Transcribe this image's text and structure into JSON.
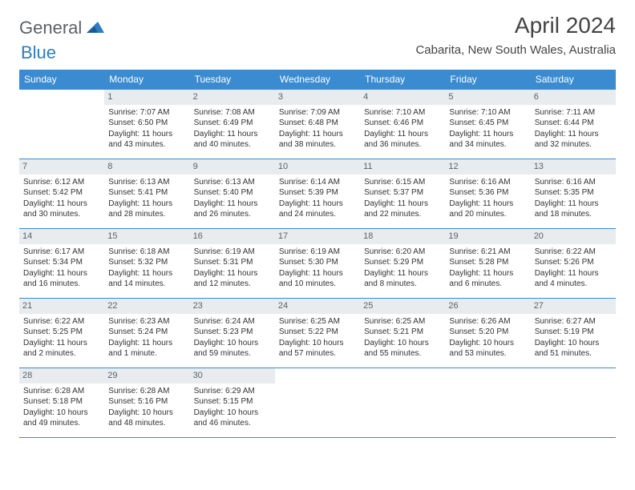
{
  "logo": {
    "part1": "General",
    "part2": "Blue"
  },
  "title": "April 2024",
  "location": "Cabarita, New South Wales, Australia",
  "colors": {
    "header_bg": "#3a8bd0",
    "header_text": "#ffffff",
    "daynum_bg": "#e8ecef",
    "daynum_text": "#5a6268",
    "border": "#3a8bd0",
    "logo_gray": "#5a6268",
    "logo_blue": "#2e7cc2",
    "body_text": "#333333",
    "page_bg": "#ffffff"
  },
  "typography": {
    "title_fontsize": 28,
    "location_fontsize": 15,
    "dow_fontsize": 12,
    "daynum_fontsize": 11,
    "body_fontsize": 10
  },
  "daysOfWeek": [
    "Sunday",
    "Monday",
    "Tuesday",
    "Wednesday",
    "Thursday",
    "Friday",
    "Saturday"
  ],
  "weeks": [
    [
      {
        "n": "",
        "sr": "",
        "ss": "",
        "dl": ""
      },
      {
        "n": "1",
        "sr": "Sunrise: 7:07 AM",
        "ss": "Sunset: 6:50 PM",
        "dl": "Daylight: 11 hours and 43 minutes."
      },
      {
        "n": "2",
        "sr": "Sunrise: 7:08 AM",
        "ss": "Sunset: 6:49 PM",
        "dl": "Daylight: 11 hours and 40 minutes."
      },
      {
        "n": "3",
        "sr": "Sunrise: 7:09 AM",
        "ss": "Sunset: 6:48 PM",
        "dl": "Daylight: 11 hours and 38 minutes."
      },
      {
        "n": "4",
        "sr": "Sunrise: 7:10 AM",
        "ss": "Sunset: 6:46 PM",
        "dl": "Daylight: 11 hours and 36 minutes."
      },
      {
        "n": "5",
        "sr": "Sunrise: 7:10 AM",
        "ss": "Sunset: 6:45 PM",
        "dl": "Daylight: 11 hours and 34 minutes."
      },
      {
        "n": "6",
        "sr": "Sunrise: 7:11 AM",
        "ss": "Sunset: 6:44 PM",
        "dl": "Daylight: 11 hours and 32 minutes."
      }
    ],
    [
      {
        "n": "7",
        "sr": "Sunrise: 6:12 AM",
        "ss": "Sunset: 5:42 PM",
        "dl": "Daylight: 11 hours and 30 minutes."
      },
      {
        "n": "8",
        "sr": "Sunrise: 6:13 AM",
        "ss": "Sunset: 5:41 PM",
        "dl": "Daylight: 11 hours and 28 minutes."
      },
      {
        "n": "9",
        "sr": "Sunrise: 6:13 AM",
        "ss": "Sunset: 5:40 PM",
        "dl": "Daylight: 11 hours and 26 minutes."
      },
      {
        "n": "10",
        "sr": "Sunrise: 6:14 AM",
        "ss": "Sunset: 5:39 PM",
        "dl": "Daylight: 11 hours and 24 minutes."
      },
      {
        "n": "11",
        "sr": "Sunrise: 6:15 AM",
        "ss": "Sunset: 5:37 PM",
        "dl": "Daylight: 11 hours and 22 minutes."
      },
      {
        "n": "12",
        "sr": "Sunrise: 6:16 AM",
        "ss": "Sunset: 5:36 PM",
        "dl": "Daylight: 11 hours and 20 minutes."
      },
      {
        "n": "13",
        "sr": "Sunrise: 6:16 AM",
        "ss": "Sunset: 5:35 PM",
        "dl": "Daylight: 11 hours and 18 minutes."
      }
    ],
    [
      {
        "n": "14",
        "sr": "Sunrise: 6:17 AM",
        "ss": "Sunset: 5:34 PM",
        "dl": "Daylight: 11 hours and 16 minutes."
      },
      {
        "n": "15",
        "sr": "Sunrise: 6:18 AM",
        "ss": "Sunset: 5:32 PM",
        "dl": "Daylight: 11 hours and 14 minutes."
      },
      {
        "n": "16",
        "sr": "Sunrise: 6:19 AM",
        "ss": "Sunset: 5:31 PM",
        "dl": "Daylight: 11 hours and 12 minutes."
      },
      {
        "n": "17",
        "sr": "Sunrise: 6:19 AM",
        "ss": "Sunset: 5:30 PM",
        "dl": "Daylight: 11 hours and 10 minutes."
      },
      {
        "n": "18",
        "sr": "Sunrise: 6:20 AM",
        "ss": "Sunset: 5:29 PM",
        "dl": "Daylight: 11 hours and 8 minutes."
      },
      {
        "n": "19",
        "sr": "Sunrise: 6:21 AM",
        "ss": "Sunset: 5:28 PM",
        "dl": "Daylight: 11 hours and 6 minutes."
      },
      {
        "n": "20",
        "sr": "Sunrise: 6:22 AM",
        "ss": "Sunset: 5:26 PM",
        "dl": "Daylight: 11 hours and 4 minutes."
      }
    ],
    [
      {
        "n": "21",
        "sr": "Sunrise: 6:22 AM",
        "ss": "Sunset: 5:25 PM",
        "dl": "Daylight: 11 hours and 2 minutes."
      },
      {
        "n": "22",
        "sr": "Sunrise: 6:23 AM",
        "ss": "Sunset: 5:24 PM",
        "dl": "Daylight: 11 hours and 1 minute."
      },
      {
        "n": "23",
        "sr": "Sunrise: 6:24 AM",
        "ss": "Sunset: 5:23 PM",
        "dl": "Daylight: 10 hours and 59 minutes."
      },
      {
        "n": "24",
        "sr": "Sunrise: 6:25 AM",
        "ss": "Sunset: 5:22 PM",
        "dl": "Daylight: 10 hours and 57 minutes."
      },
      {
        "n": "25",
        "sr": "Sunrise: 6:25 AM",
        "ss": "Sunset: 5:21 PM",
        "dl": "Daylight: 10 hours and 55 minutes."
      },
      {
        "n": "26",
        "sr": "Sunrise: 6:26 AM",
        "ss": "Sunset: 5:20 PM",
        "dl": "Daylight: 10 hours and 53 minutes."
      },
      {
        "n": "27",
        "sr": "Sunrise: 6:27 AM",
        "ss": "Sunset: 5:19 PM",
        "dl": "Daylight: 10 hours and 51 minutes."
      }
    ],
    [
      {
        "n": "28",
        "sr": "Sunrise: 6:28 AM",
        "ss": "Sunset: 5:18 PM",
        "dl": "Daylight: 10 hours and 49 minutes."
      },
      {
        "n": "29",
        "sr": "Sunrise: 6:28 AM",
        "ss": "Sunset: 5:16 PM",
        "dl": "Daylight: 10 hours and 48 minutes."
      },
      {
        "n": "30",
        "sr": "Sunrise: 6:29 AM",
        "ss": "Sunset: 5:15 PM",
        "dl": "Daylight: 10 hours and 46 minutes."
      },
      {
        "n": "",
        "sr": "",
        "ss": "",
        "dl": ""
      },
      {
        "n": "",
        "sr": "",
        "ss": "",
        "dl": ""
      },
      {
        "n": "",
        "sr": "",
        "ss": "",
        "dl": ""
      },
      {
        "n": "",
        "sr": "",
        "ss": "",
        "dl": ""
      }
    ]
  ]
}
